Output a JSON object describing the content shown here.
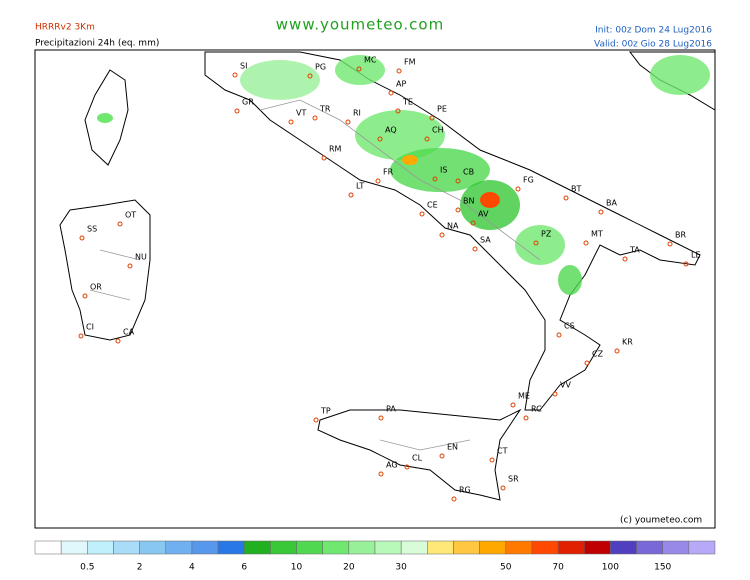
{
  "header": {
    "model": "HRRRv2  3Km",
    "field": "Precipitazioni 24h (eq. mm)",
    "site": "www.youmeteo.com",
    "init": "Init: 00z Dom 24 Lug2016",
    "valid": "Valid: 00z Gio  28 Lug2016"
  },
  "copyright": "(c) youmeteo.com",
  "cities": [
    "SI",
    "PG",
    "MC",
    "FM",
    "AP",
    "TE",
    "GR",
    "VT",
    "TR",
    "RI",
    "PE",
    "AQ",
    "CH",
    "RM",
    "FR",
    "IS",
    "CB",
    "FG",
    "LT",
    "BT",
    "CE",
    "BN",
    "BA",
    "AV",
    "NA",
    "SA",
    "PZ",
    "MT",
    "TA",
    "BR",
    "LE",
    "OT",
    "SS",
    "NU",
    "OR",
    "CI",
    "CA",
    "CS",
    "KR",
    "CZ",
    "VV",
    "ME",
    "RC",
    "TP",
    "PA",
    "EN",
    "CT",
    "CL",
    "AG",
    "SR",
    "RG"
  ],
  "legend": {
    "colors": [
      "#ffffff",
      "#e0f8fc",
      "#c0f0fc",
      "#a8dcf8",
      "#88c8f0",
      "#70b0f0",
      "#5898ec",
      "#2878e8",
      "#20b020",
      "#38c838",
      "#50d850",
      "#70e870",
      "#98f098",
      "#b8f8b8",
      "#d8fcd8",
      "#ffe878",
      "#ffc840",
      "#ffa800",
      "#ff7800",
      "#ff4800",
      "#e02000",
      "#c00000",
      "#5040c0",
      "#7868d8",
      "#9888e8",
      "#b8a8f8"
    ],
    "labels": [
      0.5,
      2,
      4,
      6,
      10,
      20,
      30,
      null,
      50,
      70,
      100,
      150
    ]
  }
}
